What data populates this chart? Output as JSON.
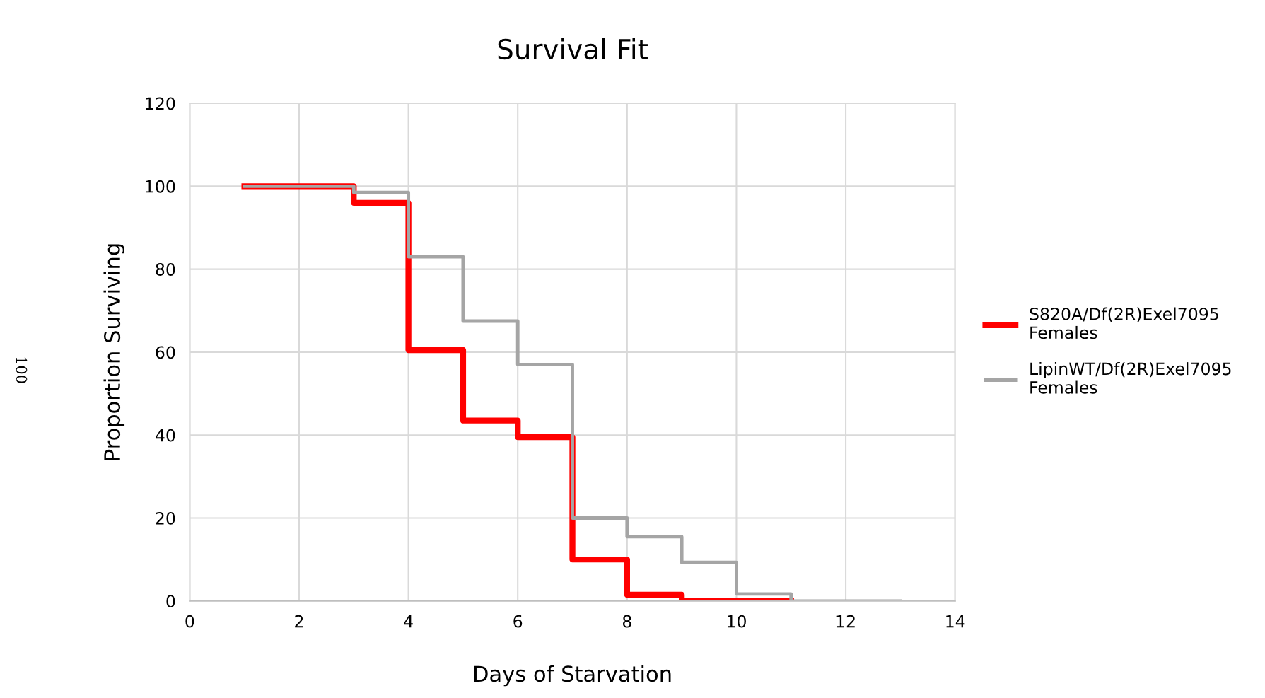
{
  "chart_data": {
    "type": "step",
    "title": "Survival Fit",
    "xlabel": "Days of Starvation",
    "ylabel": "Proportion Surviving",
    "series": [
      {
        "name": "S820A/Df(2R)Exel7095 Females",
        "color": "#ff0000",
        "x": [
          1,
          3,
          4,
          5,
          6,
          7,
          8,
          9,
          11
        ],
        "values": [
          100,
          96,
          60.5,
          43.5,
          39.5,
          10,
          1.5,
          0,
          0
        ]
      },
      {
        "name": "LipinWT/Df(2R)Exel7095 Females",
        "color": "#a5a5a5",
        "x": [
          1,
          3,
          4,
          5,
          6,
          7,
          8,
          9,
          10,
          11,
          13
        ],
        "values": [
          100,
          98.5,
          83,
          67.5,
          57,
          20,
          15.5,
          9.3,
          1.7,
          0,
          0
        ]
      }
    ],
    "xlim": [
      0,
      14
    ],
    "xticks": [
      0,
      2,
      4,
      6,
      8,
      10,
      12,
      14
    ],
    "ylim": [
      0,
      120
    ],
    "yticks": [
      0,
      20,
      40,
      60,
      80,
      100,
      120
    ],
    "grid": true,
    "legend": "right",
    "annotations": [
      "100"
    ]
  }
}
